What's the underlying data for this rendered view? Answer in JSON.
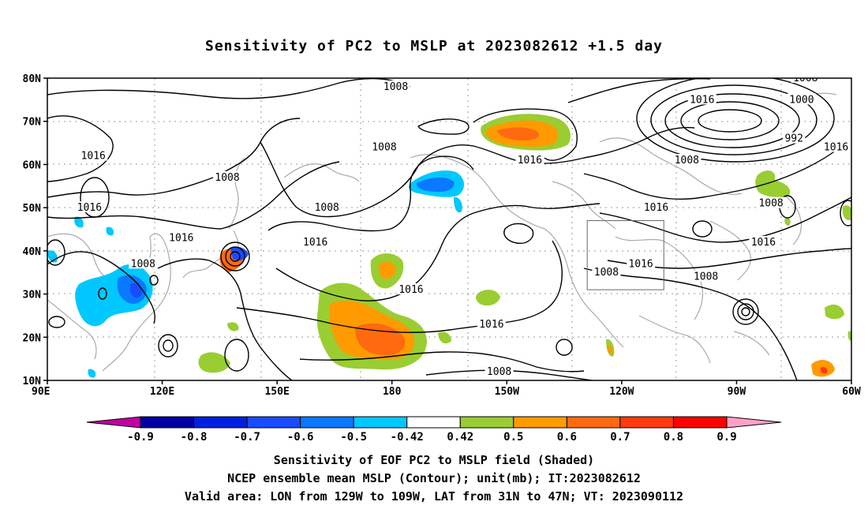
{
  "title": "Sensitivity of PC2 to MSLP at 2023082612 +1.5 day",
  "map": {
    "lat_labels": [
      "80N",
      "70N",
      "60N",
      "50N",
      "40N",
      "30N",
      "20N",
      "10N"
    ],
    "lon_labels": [
      "90E",
      "120E",
      "150E",
      "180",
      "150W",
      "120W",
      "90W",
      "60W"
    ],
    "lat_range": [
      10,
      80
    ],
    "lon_range": [
      90,
      300
    ],
    "valid_area_box": {
      "lon": [
        231,
        251
      ],
      "lat": [
        31,
        47
      ]
    },
    "contour_labels": [
      {
        "text": "1008",
        "lon": 181,
        "lat": 78
      },
      {
        "text": "1016",
        "lon": 102,
        "lat": 62
      },
      {
        "text": "1008",
        "lon": 137,
        "lat": 57
      },
      {
        "text": "1016",
        "lon": 101,
        "lat": 50
      },
      {
        "text": "1016",
        "lon": 125,
        "lat": 43
      },
      {
        "text": "1008",
        "lon": 115,
        "lat": 37
      },
      {
        "text": "1008",
        "lon": 178,
        "lat": 64
      },
      {
        "text": "1016",
        "lon": 160,
        "lat": 42
      },
      {
        "text": "1008",
        "lon": 163,
        "lat": 50
      },
      {
        "text": "1016",
        "lon": 185,
        "lat": 31
      },
      {
        "text": "1016",
        "lon": 206,
        "lat": 23
      },
      {
        "text": "1008",
        "lon": 208,
        "lat": 12
      },
      {
        "text": "1016",
        "lon": 216,
        "lat": 61
      },
      {
        "text": "1016",
        "lon": 261,
        "lat": 75
      },
      {
        "text": "1008",
        "lon": 257,
        "lat": 61
      },
      {
        "text": "1008",
        "lon": 288,
        "lat": 80
      },
      {
        "text": "1000",
        "lon": 287,
        "lat": 75
      },
      {
        "text": "992",
        "lon": 285,
        "lat": 66
      },
      {
        "text": "1016",
        "lon": 296,
        "lat": 64
      },
      {
        "text": "1008",
        "lon": 279,
        "lat": 51
      },
      {
        "text": "1016",
        "lon": 249,
        "lat": 50
      },
      {
        "text": "1016",
        "lon": 277,
        "lat": 42
      },
      {
        "text": "1016",
        "lon": 245,
        "lat": 37
      },
      {
        "text": "1008",
        "lon": 236,
        "lat": 35
      },
      {
        "text": "1008",
        "lon": 262,
        "lat": 34
      }
    ]
  },
  "colorbar": {
    "tick_labels": [
      "-0.9",
      "-0.8",
      "-0.7",
      "-0.6",
      "-0.5",
      "-0.42",
      "0.42",
      "0.5",
      "0.6",
      "0.7",
      "0.8",
      "0.9"
    ],
    "colors": [
      "#0000a0",
      "#0020e0",
      "#1a4cff",
      "#0a78ff",
      "#00c8ff",
      "#ffffff",
      "#9acd32",
      "#ff9b00",
      "#ff6a10",
      "#ff3a10",
      "#ff0000"
    ],
    "low_end_color": "#c000a0",
    "high_end_color": "#ffa0c8"
  },
  "captions": {
    "line1": "Sensitivity of EOF PC2 to MSLP field (Shaded)",
    "line2": "NCEP ensemble mean MSLP (Contour); unit(mb); IT:2023082612",
    "line3": "Valid area: LON from 129W to 109W, LAT from 31N to 47N; VT: 2023090112"
  }
}
